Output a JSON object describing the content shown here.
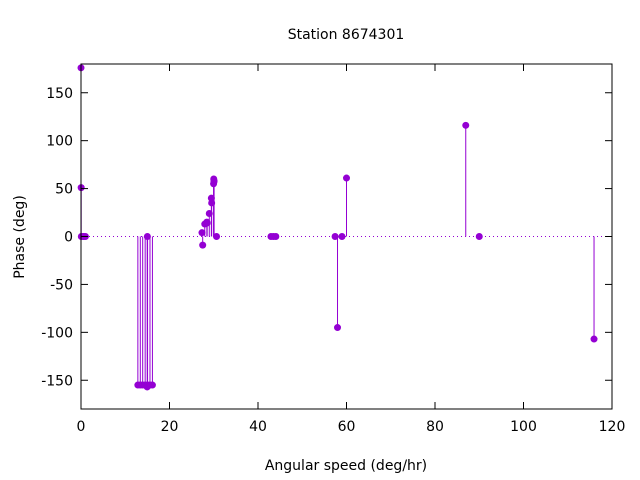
{
  "chart_data": {
    "type": "stem",
    "title": "Station 8674301",
    "xlabel": "Angular speed (deg/hr)",
    "ylabel": "Phase (deg)",
    "xlim": [
      0,
      120
    ],
    "ylim": [
      -180,
      180
    ],
    "xticks": [
      0,
      20,
      40,
      60,
      80,
      100,
      120
    ],
    "yticks": [
      -150,
      -100,
      -50,
      0,
      50,
      100,
      150
    ],
    "xtick_labels": [
      "0",
      "20",
      "40",
      "60",
      "80",
      "100",
      "120"
    ],
    "ytick_labels": [
      "-150",
      "-100",
      "-50",
      "0",
      "50",
      "100",
      "150"
    ],
    "grid": false,
    "zero_line": true,
    "series_color": "#9400d3",
    "points": [
      {
        "x": 0.0,
        "y": 176
      },
      {
        "x": 0.04,
        "y": 51
      },
      {
        "x": 0.08,
        "y": 0
      },
      {
        "x": 0.54,
        "y": 0
      },
      {
        "x": 0.6,
        "y": 0
      },
      {
        "x": 1.0,
        "y": 0
      },
      {
        "x": 12.85,
        "y": -155
      },
      {
        "x": 13.4,
        "y": -155
      },
      {
        "x": 13.94,
        "y": -155
      },
      {
        "x": 14.5,
        "y": -155
      },
      {
        "x": 14.96,
        "y": -157
      },
      {
        "x": 15.0,
        "y": 0
      },
      {
        "x": 15.04,
        "y": -155
      },
      {
        "x": 15.59,
        "y": -155
      },
      {
        "x": 16.14,
        "y": -155
      },
      {
        "x": 27.34,
        "y": 4
      },
      {
        "x": 27.5,
        "y": -9
      },
      {
        "x": 27.97,
        "y": 13
      },
      {
        "x": 28.44,
        "y": 15
      },
      {
        "x": 28.51,
        "y": 14
      },
      {
        "x": 28.99,
        "y": 24
      },
      {
        "x": 29.46,
        "y": 40
      },
      {
        "x": 29.53,
        "y": 35
      },
      {
        "x": 29.96,
        "y": 55
      },
      {
        "x": 30.0,
        "y": 60
      },
      {
        "x": 30.04,
        "y": 57
      },
      {
        "x": 30.08,
        "y": 58
      },
      {
        "x": 30.63,
        "y": 0
      },
      {
        "x": 42.93,
        "y": 0
      },
      {
        "x": 43.48,
        "y": 0
      },
      {
        "x": 44.03,
        "y": 0
      },
      {
        "x": 57.42,
        "y": 0
      },
      {
        "x": 57.97,
        "y": -95
      },
      {
        "x": 58.98,
        "y": 0
      },
      {
        "x": 60.0,
        "y": 61
      },
      {
        "x": 86.95,
        "y": 116
      },
      {
        "x": 90.0,
        "y": 0
      },
      {
        "x": 115.94,
        "y": -107
      }
    ]
  }
}
